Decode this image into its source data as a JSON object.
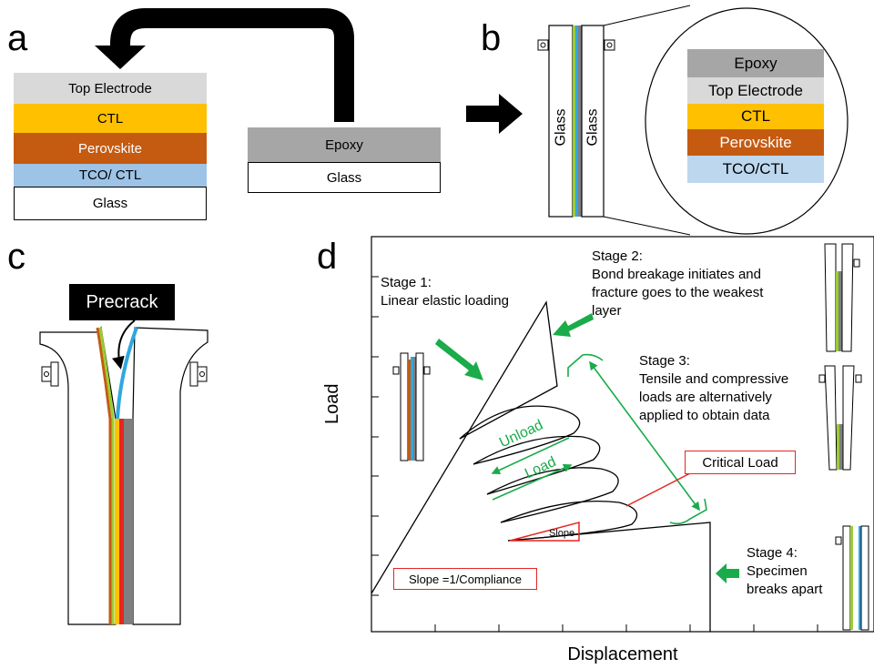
{
  "panels": {
    "a": "a",
    "b": "b",
    "c": "c",
    "d": "d"
  },
  "colors": {
    "top_electrode": "#d9d9d9",
    "ctl": "#ffc000",
    "perovskite": "#c55a11",
    "tco_ctl": "#9dc3e6",
    "epoxy": "#a6a6a6",
    "stage_arrow": "#1aab4a",
    "green_annotation": "#1aab4a",
    "red_annotation": "#e52521"
  },
  "panel_a": {
    "stack": [
      "Top Electrode",
      "CTL",
      "Perovskite",
      "TCO/ CTL",
      "Glass"
    ],
    "cover": [
      "Epoxy",
      "Glass"
    ]
  },
  "panel_b": {
    "glass_left": "Glass",
    "glass_right": "Glass",
    "zoom_layers": [
      "Epoxy",
      "Top Electrode",
      "CTL",
      "Perovskite",
      "TCO/CTL"
    ]
  },
  "panel_c": {
    "precrack_label": "Precrack"
  },
  "panel_d": {
    "xlabel": "Displacement",
    "ylabel": "Load",
    "stage1": "Stage 1:\nLinear elastic loading",
    "stage2": "Stage 2:\nBond breakage initiates and\nfracture goes to the weakest\nlayer",
    "stage3": "Stage 3:\nTensile and compressive\nloads are alternatively\napplied to obtain data",
    "stage4": "Stage 4:\nSpecimen\nbreaks apart",
    "unload_label": "Unload",
    "load_label": "Load",
    "critical_load": "Critical Load",
    "slope_label": "Slope",
    "slope_def": "Slope =1/Compliance"
  }
}
